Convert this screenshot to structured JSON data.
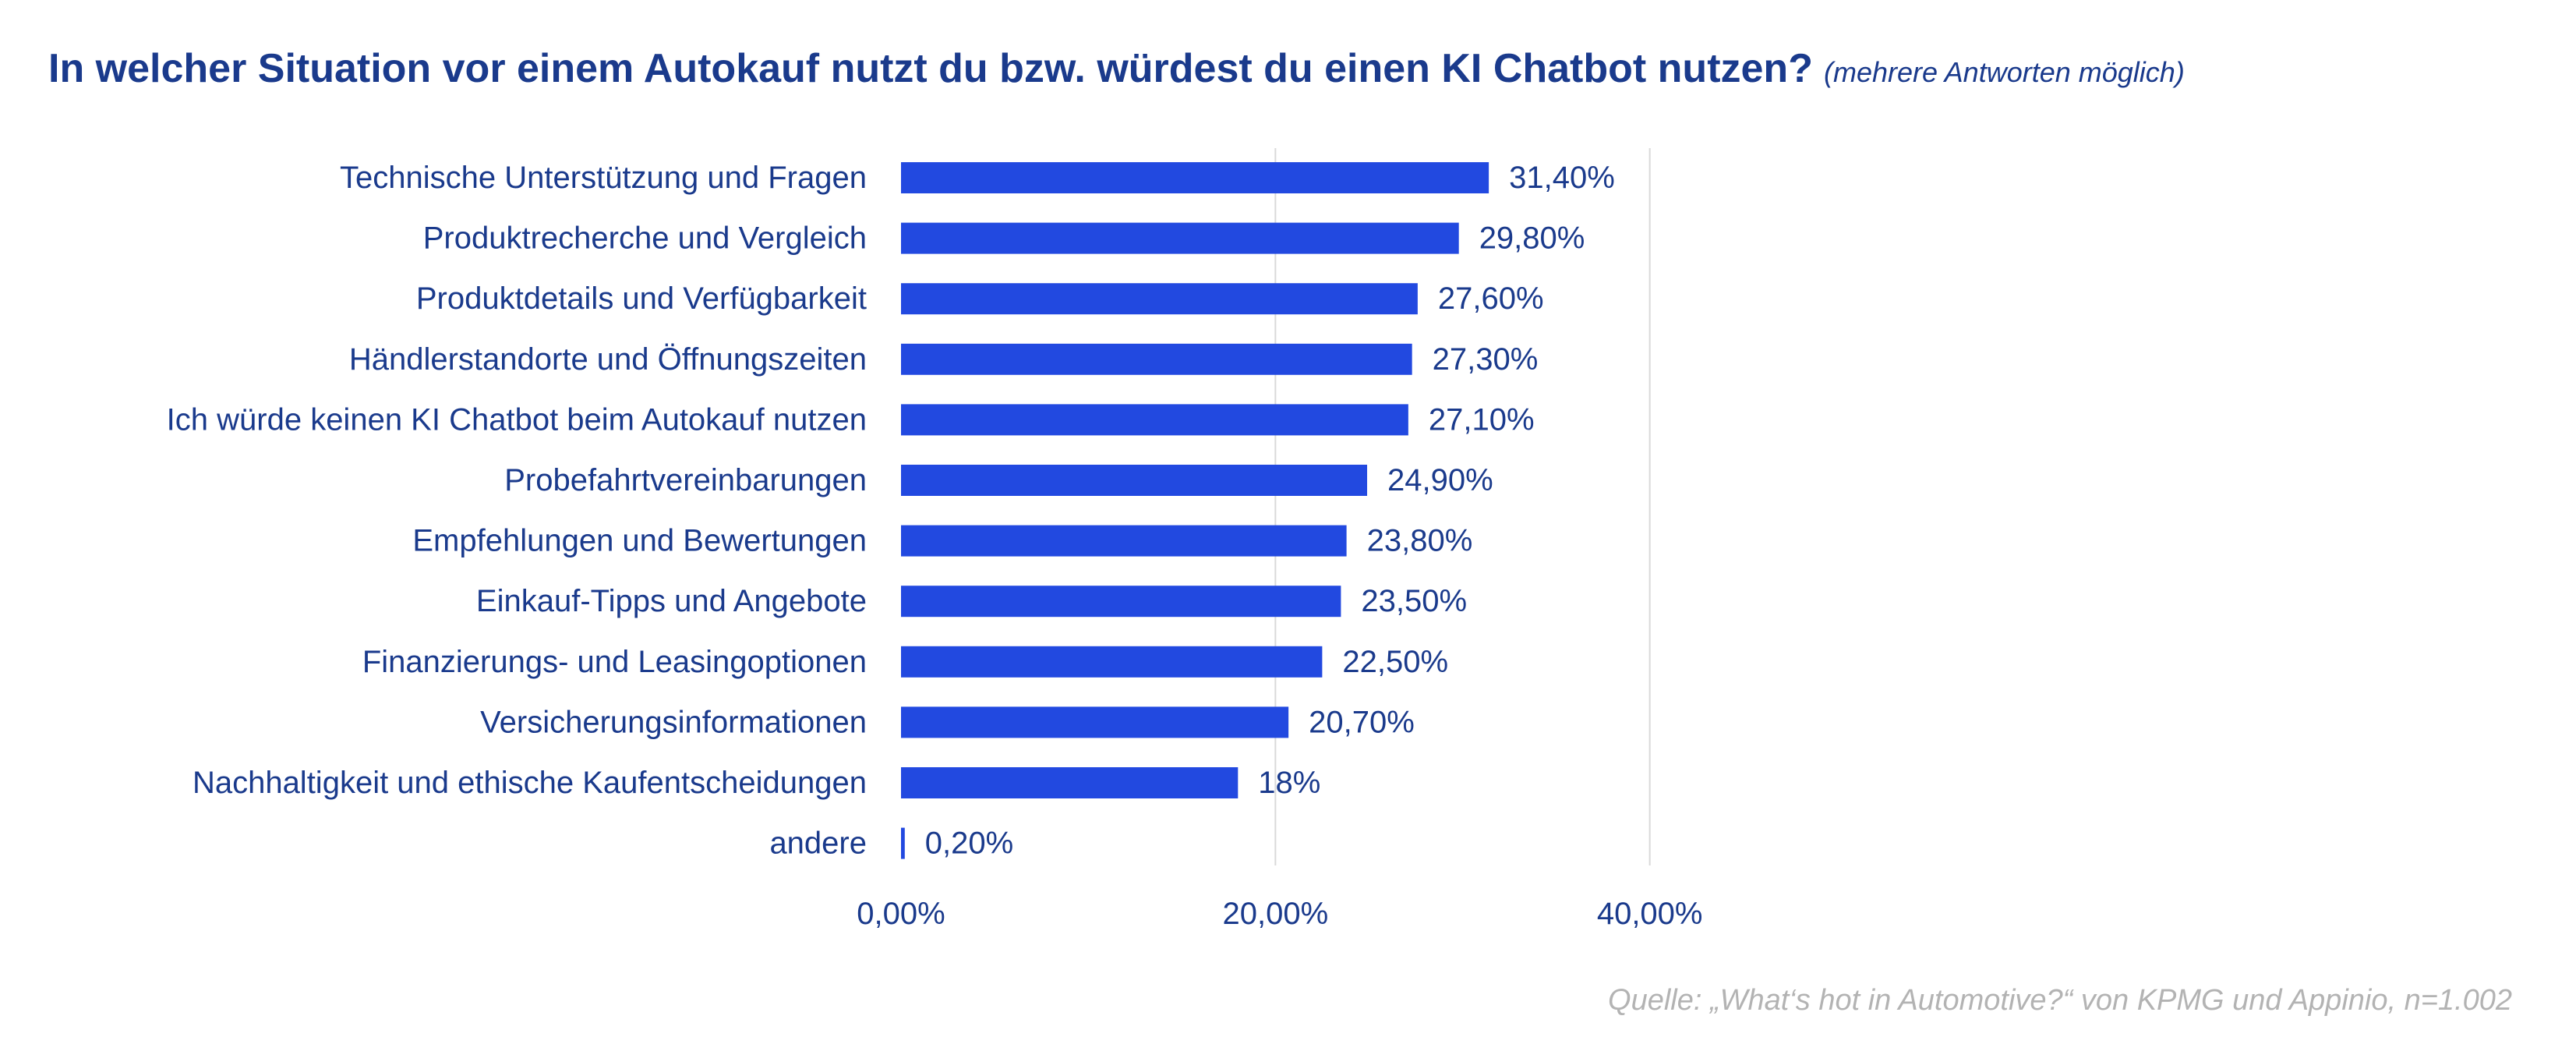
{
  "title": "In welcher Situation vor einem Autokauf nutzt du bzw. würdest du einen KI Chatbot nutzen?",
  "subtitle": "(mehrere Antworten möglich)",
  "source": "Quelle: „What‘s hot in Automotive?“ von KPMG und Appinio, n=1.002",
  "colors": {
    "bar": "#2249e0",
    "text": "#1a3a8c",
    "grid": "#d9d9d9",
    "source": "#b3b3b3"
  },
  "chart_data": {
    "type": "bar",
    "orientation": "horizontal",
    "categories": [
      "Technische Unterstützung und Fragen",
      "Produktrecherche und Vergleich",
      "Produktdetails und Verfügbarkeit",
      "Händlerstandorte und Öffnungszeiten",
      "Ich würde keinen KI Chatbot beim Autokauf nutzen",
      "Probefahrtvereinbarungen",
      "Empfehlungen und Bewertungen",
      "Einkauf-Tipps und Angebote",
      "Finanzierungs- und Leasingoptionen",
      "Versicherungsinformationen",
      "Nachhaltigkeit und ethische Kaufentscheidungen",
      "andere"
    ],
    "values": [
      31.4,
      29.8,
      27.6,
      27.3,
      27.1,
      24.9,
      23.8,
      23.5,
      22.5,
      20.7,
      18,
      0.2
    ],
    "data_labels": [
      "31,40%",
      "29,80%",
      "27,60%",
      "27,30%",
      "27,10%",
      "24,90%",
      "23,80%",
      "23,50%",
      "22,50%",
      "20,70%",
      "18%",
      "0,20%"
    ],
    "xlim": [
      0,
      60
    ],
    "x_ticks": [
      0,
      20,
      40
    ],
    "x_tick_labels": [
      "0,00%",
      "20,00%",
      "40,00%"
    ],
    "grid": true
  }
}
